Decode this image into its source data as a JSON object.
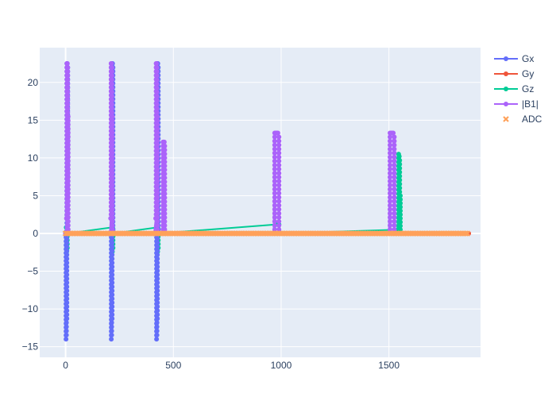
{
  "chart_data": {
    "type": "line",
    "title": "",
    "xlabel": "",
    "ylabel": "",
    "xlim": [
      -120,
      1925
    ],
    "ylim": [
      -16.4,
      24.6
    ],
    "x_ticks": [
      0,
      500,
      1000,
      1500
    ],
    "y_ticks": [
      -15,
      -10,
      -5,
      0,
      5,
      10,
      15,
      20
    ],
    "grid": true,
    "legend_position": "top-right",
    "colors": {
      "plot_bg": "#e5ecf6",
      "grid": "#ffffff",
      "text": "#2a3f5f",
      "Gx": "#636efa",
      "Gy": "#ef553b",
      "Gz": "#00cc96",
      "B1": "#ab63fa",
      "ADC": "#ffa15a"
    },
    "series": [
      {
        "name": "Gx",
        "mode": "lines+markers",
        "color": "#636efa",
        "x": [
          0,
          2,
          4,
          6,
          8,
          10,
          210,
          212,
          214,
          216,
          218,
          220,
          420,
          422,
          424,
          426,
          428,
          430
        ],
        "y": [
          0,
          -14,
          -11.8,
          22.5,
          22.5,
          0,
          0,
          -14,
          -11.8,
          22.5,
          22.5,
          0,
          0,
          -14,
          -11.8,
          22.5,
          22.5,
          0
        ]
      },
      {
        "name": "Gy",
        "mode": "lines+markers",
        "color": "#ef553b",
        "x": [
          0,
          1870
        ],
        "y": [
          0,
          0
        ]
      },
      {
        "name": "Gz",
        "mode": "lines+markers",
        "color": "#00cc96",
        "x": [
          0,
          3,
          5,
          8,
          10,
          215,
          217,
          220,
          222,
          425,
          427,
          430,
          432,
          980,
          990,
          1000,
          1540,
          1545,
          1548,
          1550,
          1553,
          1555
        ],
        "y": [
          0,
          0.8,
          -2.4,
          0.6,
          0,
          0.8,
          -2.4,
          0.6,
          0,
          0.8,
          -2.4,
          0.6,
          0,
          1.2,
          1.2,
          0,
          0.5,
          10.5,
          10.2,
          5.5,
          0.5,
          0
        ]
      },
      {
        "name": "|B1|",
        "mode": "lines+markers",
        "color": "#ab63fa",
        "x": [
          0,
          4,
          6,
          8,
          10,
          12,
          205,
          209,
          211,
          213,
          215,
          217,
          410,
          418,
          420,
          422,
          424,
          426,
          450,
          452,
          454,
          456,
          458,
          460,
          965,
          970,
          975,
          980,
          985,
          990,
          1500,
          1505,
          1510,
          1515,
          1520,
          1525
        ],
        "y": [
          0,
          2,
          22.5,
          22.5,
          16,
          0,
          0,
          2,
          22.5,
          22.5,
          16,
          0,
          0,
          2,
          22.5,
          22.5,
          16,
          0,
          0,
          12.1,
          12.1,
          12.1,
          12.1,
          0,
          0,
          13.3,
          13.3,
          13.3,
          13.3,
          0,
          0,
          13.3,
          13.3,
          13.3,
          13.3,
          0
        ]
      },
      {
        "name": "ADC",
        "mode": "markers",
        "marker": "x",
        "color": "#ffa15a",
        "x_start": 0,
        "x_end": 1870,
        "y": 0
      }
    ]
  }
}
